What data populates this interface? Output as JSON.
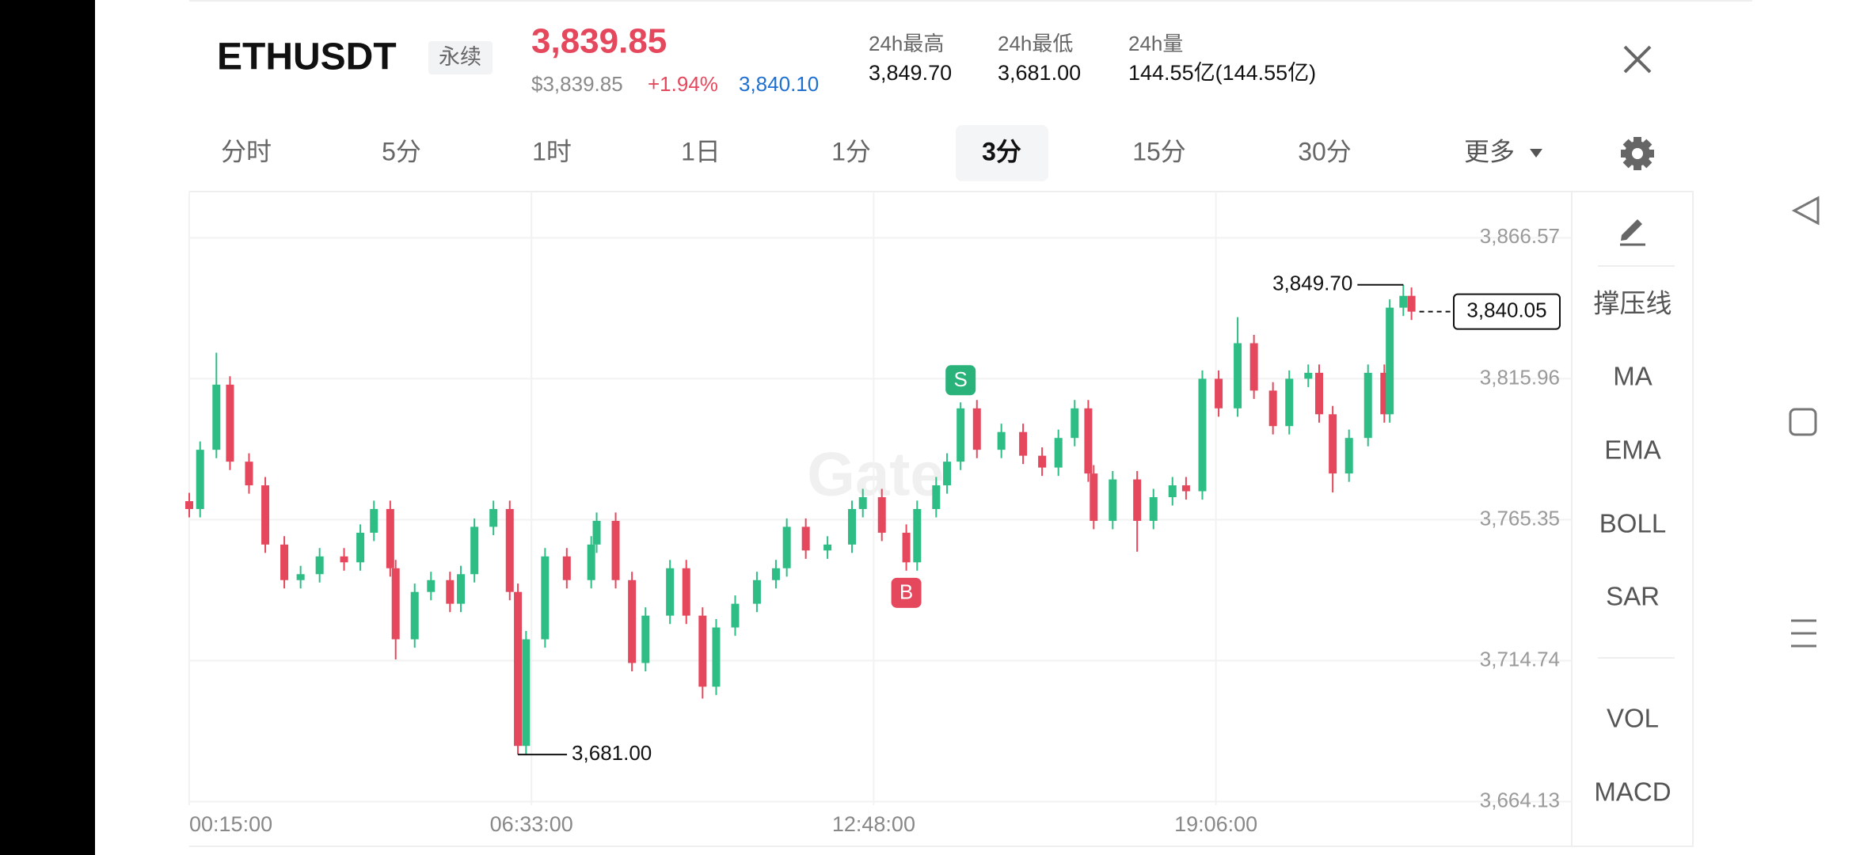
{
  "header": {
    "symbol": "ETHUSDT",
    "contract_tag": "永续",
    "last_price": "3,839.85",
    "usd_price": "$3,839.85",
    "change": "+1.94%",
    "mark_price": "3,840.10",
    "stats": [
      {
        "label": "24h最高",
        "value": "3,849.70"
      },
      {
        "label": "24h最低",
        "value": "3,681.00"
      },
      {
        "label": "24h量",
        "value": "144.55亿(144.55亿)"
      }
    ]
  },
  "tabs": [
    "分时",
    "5分",
    "1时",
    "1日",
    "1分",
    "3分",
    "15分",
    "30分"
  ],
  "active_tab": "3分",
  "more_menu": "更多",
  "indicators": [
    "撑压线",
    "MA",
    "EMA",
    "BOLL",
    "SAR"
  ],
  "sub_indicators": [
    "VOL",
    "MACD"
  ],
  "chart_data": {
    "type": "candlestick",
    "watermark": "Gate",
    "up_color": "#2ebd85",
    "down_color": "#e5485d",
    "grid": true,
    "xlim": [
      0,
      509
    ],
    "ylim": [
      3662.86,
      3883.16
    ],
    "xticks": [
      {
        "value": 0,
        "label": "00:15:00"
      },
      {
        "value": 126,
        "label": "06:33:00"
      },
      {
        "value": 252,
        "label": "12:48:00"
      },
      {
        "value": 378,
        "label": "19:06:00"
      }
    ],
    "yticks": [
      {
        "value": 3866.57,
        "label": "3,866.57"
      },
      {
        "value": 3815.96,
        "label": "3,815.96"
      },
      {
        "value": 3765.35,
        "label": "3,765.35"
      },
      {
        "value": 3714.74,
        "label": "3,714.74"
      },
      {
        "value": 3664.13,
        "label": "3,664.13"
      }
    ],
    "x": [
      0,
      4,
      10,
      15,
      22,
      28,
      35,
      41,
      48,
      57,
      63,
      68,
      74,
      76,
      83,
      89,
      96,
      100,
      105,
      112,
      118,
      121,
      124,
      131,
      139,
      148,
      150,
      157,
      163,
      168,
      177,
      183,
      189,
      194,
      201,
      209,
      216,
      220,
      227,
      235,
      244,
      248,
      255,
      264,
      268,
      275,
      279,
      284,
      290,
      299,
      307,
      314,
      320,
      326,
      331,
      333,
      340,
      349,
      355,
      362,
      367,
      373,
      379,
      386,
      392,
      399,
      405,
      412,
      416,
      421,
      427,
      434,
      440,
      442,
      447,
      450
    ],
    "open": [
      3772.0,
      3769.18,
      3790.45,
      3813.84,
      3786.19,
      3777.69,
      3756.42,
      3743.66,
      3745.79,
      3752.17,
      3750.04,
      3760.67,
      3769.18,
      3747.92,
      3722.4,
      3739.41,
      3743.66,
      3735.16,
      3745.79,
      3762.8,
      3769.18,
      3739.41,
      3684.12,
      3722.4,
      3752.17,
      3743.66,
      3756.42,
      3764.93,
      3743.66,
      3713.89,
      3730.9,
      3747.92,
      3730.9,
      3705.39,
      3726.65,
      3735.16,
      3743.66,
      3747.92,
      3762.8,
      3754.3,
      3756.42,
      3769.18,
      3773.43,
      3760.67,
      3750.04,
      3769.18,
      3777.69,
      3786.19,
      3805.33,
      3790.45,
      3796.83,
      3788.32,
      3784.07,
      3794.7,
      3805.33,
      3781.94,
      3764.93,
      3779.81,
      3764.93,
      3773.43,
      3777.69,
      3775.56,
      3815.96,
      3805.33,
      3828.72,
      3811.71,
      3798.95,
      3815.96,
      3818.09,
      3803.2,
      3781.94,
      3794.7,
      3818.09,
      3803.2,
      3841.48,
      3845.73
    ],
    "high": [
      3775.0,
      3793.45,
      3825.32,
      3816.84,
      3789.19,
      3780.69,
      3759.42,
      3748.79,
      3755.17,
      3755.17,
      3763.67,
      3772.18,
      3772.18,
      3750.92,
      3742.41,
      3746.66,
      3746.66,
      3748.79,
      3765.8,
      3772.18,
      3772.18,
      3742.41,
      3725.4,
      3755.17,
      3755.17,
      3759.42,
      3767.93,
      3767.93,
      3746.66,
      3733.9,
      3750.92,
      3750.92,
      3733.9,
      3729.65,
      3738.16,
      3746.66,
      3750.92,
      3765.8,
      3765.8,
      3759.42,
      3772.18,
      3776.43,
      3776.43,
      3763.67,
      3772.18,
      3780.69,
      3789.19,
      3807.46,
      3808.33,
      3799.83,
      3799.83,
      3791.32,
      3797.7,
      3808.33,
      3808.33,
      3784.94,
      3782.81,
      3782.81,
      3776.43,
      3780.69,
      3780.69,
      3818.96,
      3818.96,
      3838.08,
      3831.72,
      3814.71,
      3818.96,
      3821.09,
      3821.09,
      3806.2,
      3797.7,
      3821.09,
      3821.09,
      3844.48,
      3849.7,
      3848.73
    ],
    "low": [
      3766.18,
      3766.18,
      3787.45,
      3783.19,
      3774.69,
      3753.42,
      3740.66,
      3740.66,
      3742.79,
      3747.04,
      3747.04,
      3757.67,
      3744.92,
      3715.17,
      3719.4,
      3736.41,
      3732.16,
      3732.16,
      3742.79,
      3759.8,
      3736.41,
      3681.0,
      3681.12,
      3719.4,
      3740.66,
      3740.66,
      3753.42,
      3740.66,
      3710.89,
      3710.89,
      3727.9,
      3727.9,
      3701.13,
      3702.39,
      3723.65,
      3732.16,
      3740.66,
      3744.92,
      3751.3,
      3751.3,
      3753.42,
      3766.18,
      3757.67,
      3747.04,
      3747.04,
      3766.18,
      3774.69,
      3783.19,
      3787.45,
      3787.45,
      3785.32,
      3781.07,
      3781.07,
      3791.7,
      3778.94,
      3761.93,
      3761.93,
      3753.87,
      3761.93,
      3770.43,
      3772.56,
      3772.56,
      3802.33,
      3802.33,
      3808.71,
      3795.95,
      3795.95,
      3812.96,
      3800.2,
      3775.14,
      3778.94,
      3791.7,
      3800.2,
      3800.2,
      3838.48,
      3837.05
    ],
    "close": [
      3769.18,
      3790.45,
      3813.84,
      3786.19,
      3777.69,
      3756.42,
      3743.66,
      3745.79,
      3752.17,
      3750.04,
      3760.67,
      3769.18,
      3747.92,
      3722.4,
      3739.41,
      3743.66,
      3735.16,
      3745.79,
      3762.8,
      3769.18,
      3739.41,
      3684.12,
      3722.4,
      3752.17,
      3743.66,
      3756.42,
      3764.93,
      3743.66,
      3713.89,
      3730.9,
      3747.92,
      3730.9,
      3705.39,
      3726.65,
      3735.16,
      3743.66,
      3747.92,
      3762.8,
      3754.3,
      3756.42,
      3769.18,
      3773.43,
      3760.67,
      3750.04,
      3769.18,
      3777.69,
      3786.19,
      3805.33,
      3790.45,
      3796.83,
      3788.32,
      3784.07,
      3794.7,
      3805.33,
      3781.94,
      3764.93,
      3779.81,
      3764.93,
      3773.43,
      3777.69,
      3775.56,
      3815.96,
      3805.33,
      3828.72,
      3811.71,
      3798.95,
      3815.96,
      3818.09,
      3803.2,
      3781.94,
      3794.7,
      3818.09,
      3803.2,
      3841.48,
      3845.73,
      3840.05
    ],
    "high_label": {
      "value": 3849.7,
      "label": "3,849.70"
    },
    "low_label": {
      "value": 3681.0,
      "label": "3,681.00"
    },
    "last_price": {
      "value": 3840.05,
      "label": "3,840.05"
    },
    "markers": [
      {
        "label": "S",
        "x": 284,
        "position": "above",
        "color": "#2ab27b"
      },
      {
        "label": "B",
        "x": 264,
        "position": "below",
        "color": "#e5485d"
      }
    ]
  }
}
